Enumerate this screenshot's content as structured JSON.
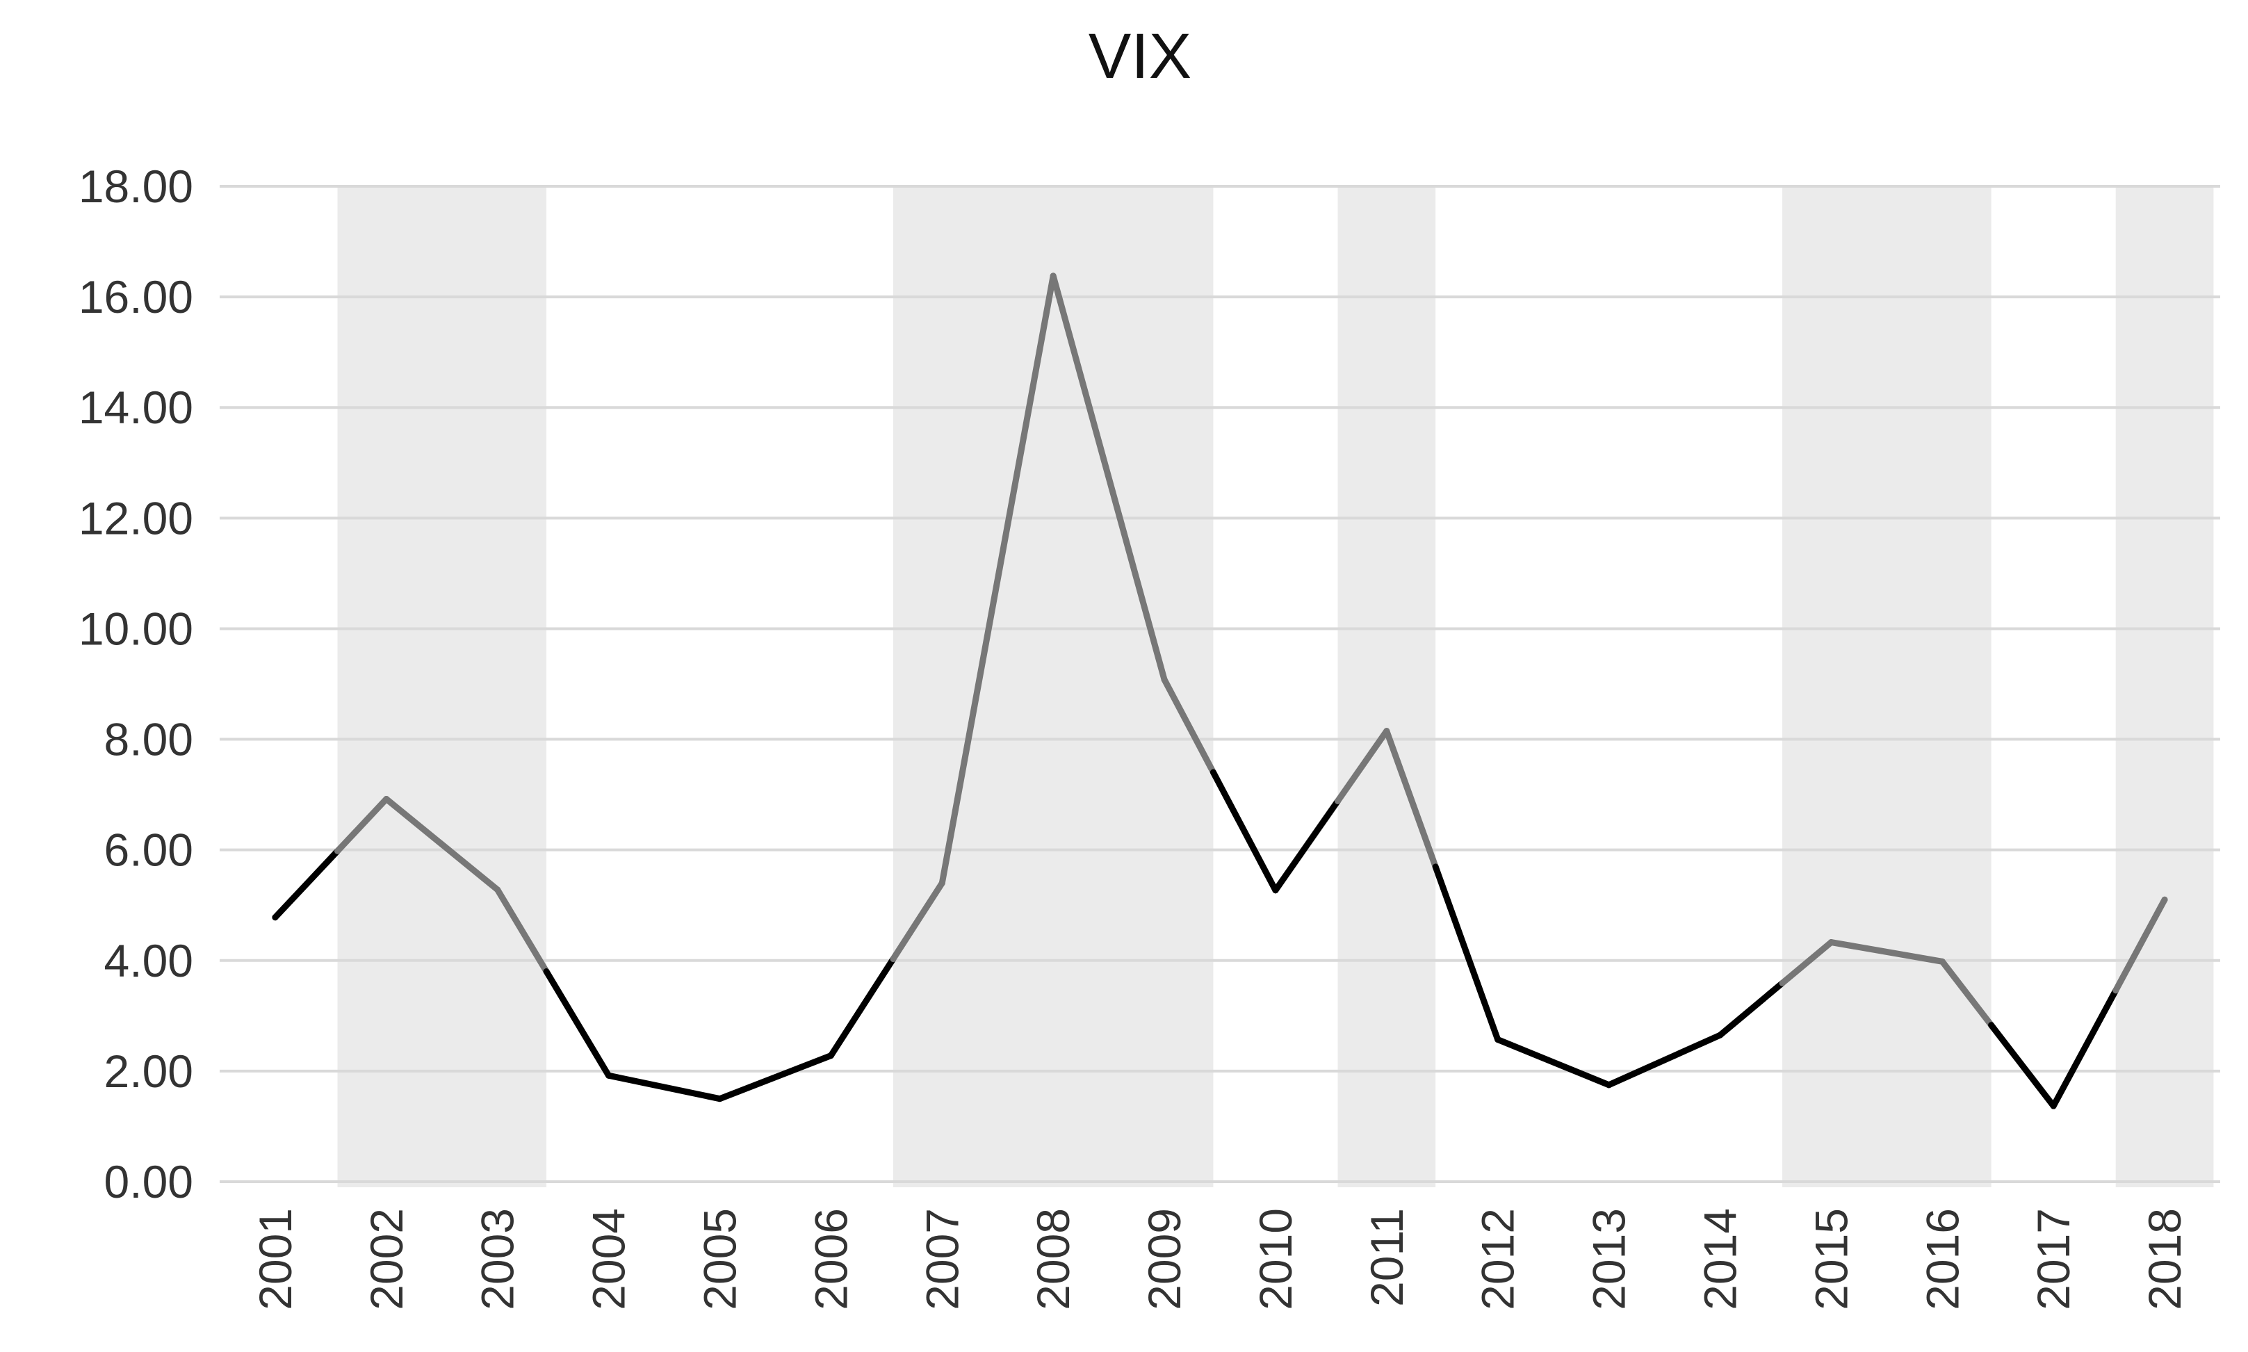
{
  "chart_data": {
    "type": "line",
    "title": "VIX",
    "xlabel": "",
    "ylabel": "",
    "categories": [
      "2001",
      "2002",
      "2003",
      "2004",
      "2005",
      "2006",
      "2007",
      "2008",
      "2009",
      "2010",
      "2011",
      "2012",
      "2013",
      "2014",
      "2015",
      "2016",
      "2017",
      "2018"
    ],
    "series": [
      {
        "values": [
          4.78,
          6.92,
          5.28,
          1.92,
          1.5,
          2.28,
          5.4,
          16.38,
          9.08,
          5.27,
          8.15,
          2.57,
          1.75,
          2.65,
          4.33,
          3.98,
          1.37,
          5.1
        ]
      }
    ],
    "ylim": [
      0,
      18
    ],
    "yticks": [
      "0.00",
      "2.00",
      "4.00",
      "6.00",
      "8.00",
      "10.00",
      "12.00",
      "14.00",
      "16.00",
      "18.00"
    ],
    "grid": true,
    "legend": "none",
    "shaded_periods": [
      {
        "from": "2002",
        "to": "2003"
      },
      {
        "from": "2007",
        "to": "2009"
      },
      {
        "from": "2011",
        "to": "2011"
      },
      {
        "from": "2015",
        "to": "2016"
      },
      {
        "from": "2018",
        "to": "2018"
      }
    ],
    "colors": {
      "line_outside_periods": "#000000",
      "line_inside_periods": "#777777",
      "shading": "#ebebeb",
      "grid": "#d9d9d9"
    }
  }
}
